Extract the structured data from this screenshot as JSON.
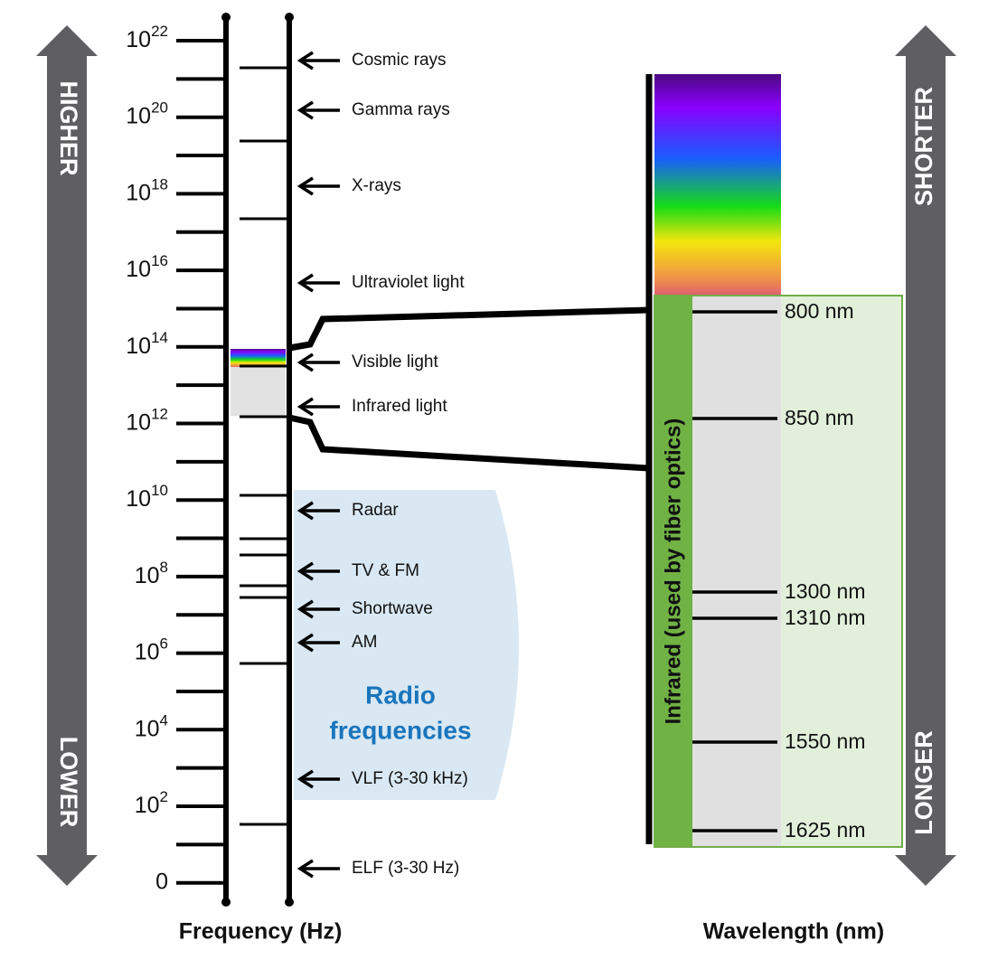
{
  "frequency_axis": {
    "title": "Frequency (Hz)",
    "ticks": [
      {
        "base": "10",
        "exponent": "22"
      },
      {
        "base": "10",
        "exponent": "20"
      },
      {
        "base": "10",
        "exponent": "18"
      },
      {
        "base": "10",
        "exponent": "16"
      },
      {
        "base": "10",
        "exponent": "14"
      },
      {
        "base": "10",
        "exponent": "12"
      },
      {
        "base": "10",
        "exponent": "10"
      },
      {
        "base": "10",
        "exponent": "8"
      },
      {
        "base": "10",
        "exponent": "6"
      },
      {
        "base": "10",
        "exponent": "4"
      },
      {
        "base": "10",
        "exponent": "2"
      },
      {
        "base": "0"
      }
    ]
  },
  "bands": [
    "Cosmic rays",
    "Gamma rays",
    "X-rays",
    "Ultraviolet light",
    "Visible light",
    "Infrared light",
    "Radar",
    "TV & FM",
    "Shortwave",
    "AM",
    "VLF (3-30 kHz)",
    "ELF (3-30 Hz)"
  ],
  "radio_label": [
    "Radio",
    "frequencies"
  ],
  "wavelength_axis": {
    "title": "Wavelength (nm)",
    "ticks": [
      "800 nm",
      "850 nm",
      "1300 nm",
      "1310 nm",
      "1550 nm",
      "1625 nm"
    ]
  },
  "infrared_label": "Infrared (used by fiber optics)",
  "direction_arrows": {
    "left": {
      "top": "HIGHER",
      "bottom": "LOWER"
    },
    "right": {
      "top": "SHORTER",
      "bottom": "LONGER"
    }
  }
}
